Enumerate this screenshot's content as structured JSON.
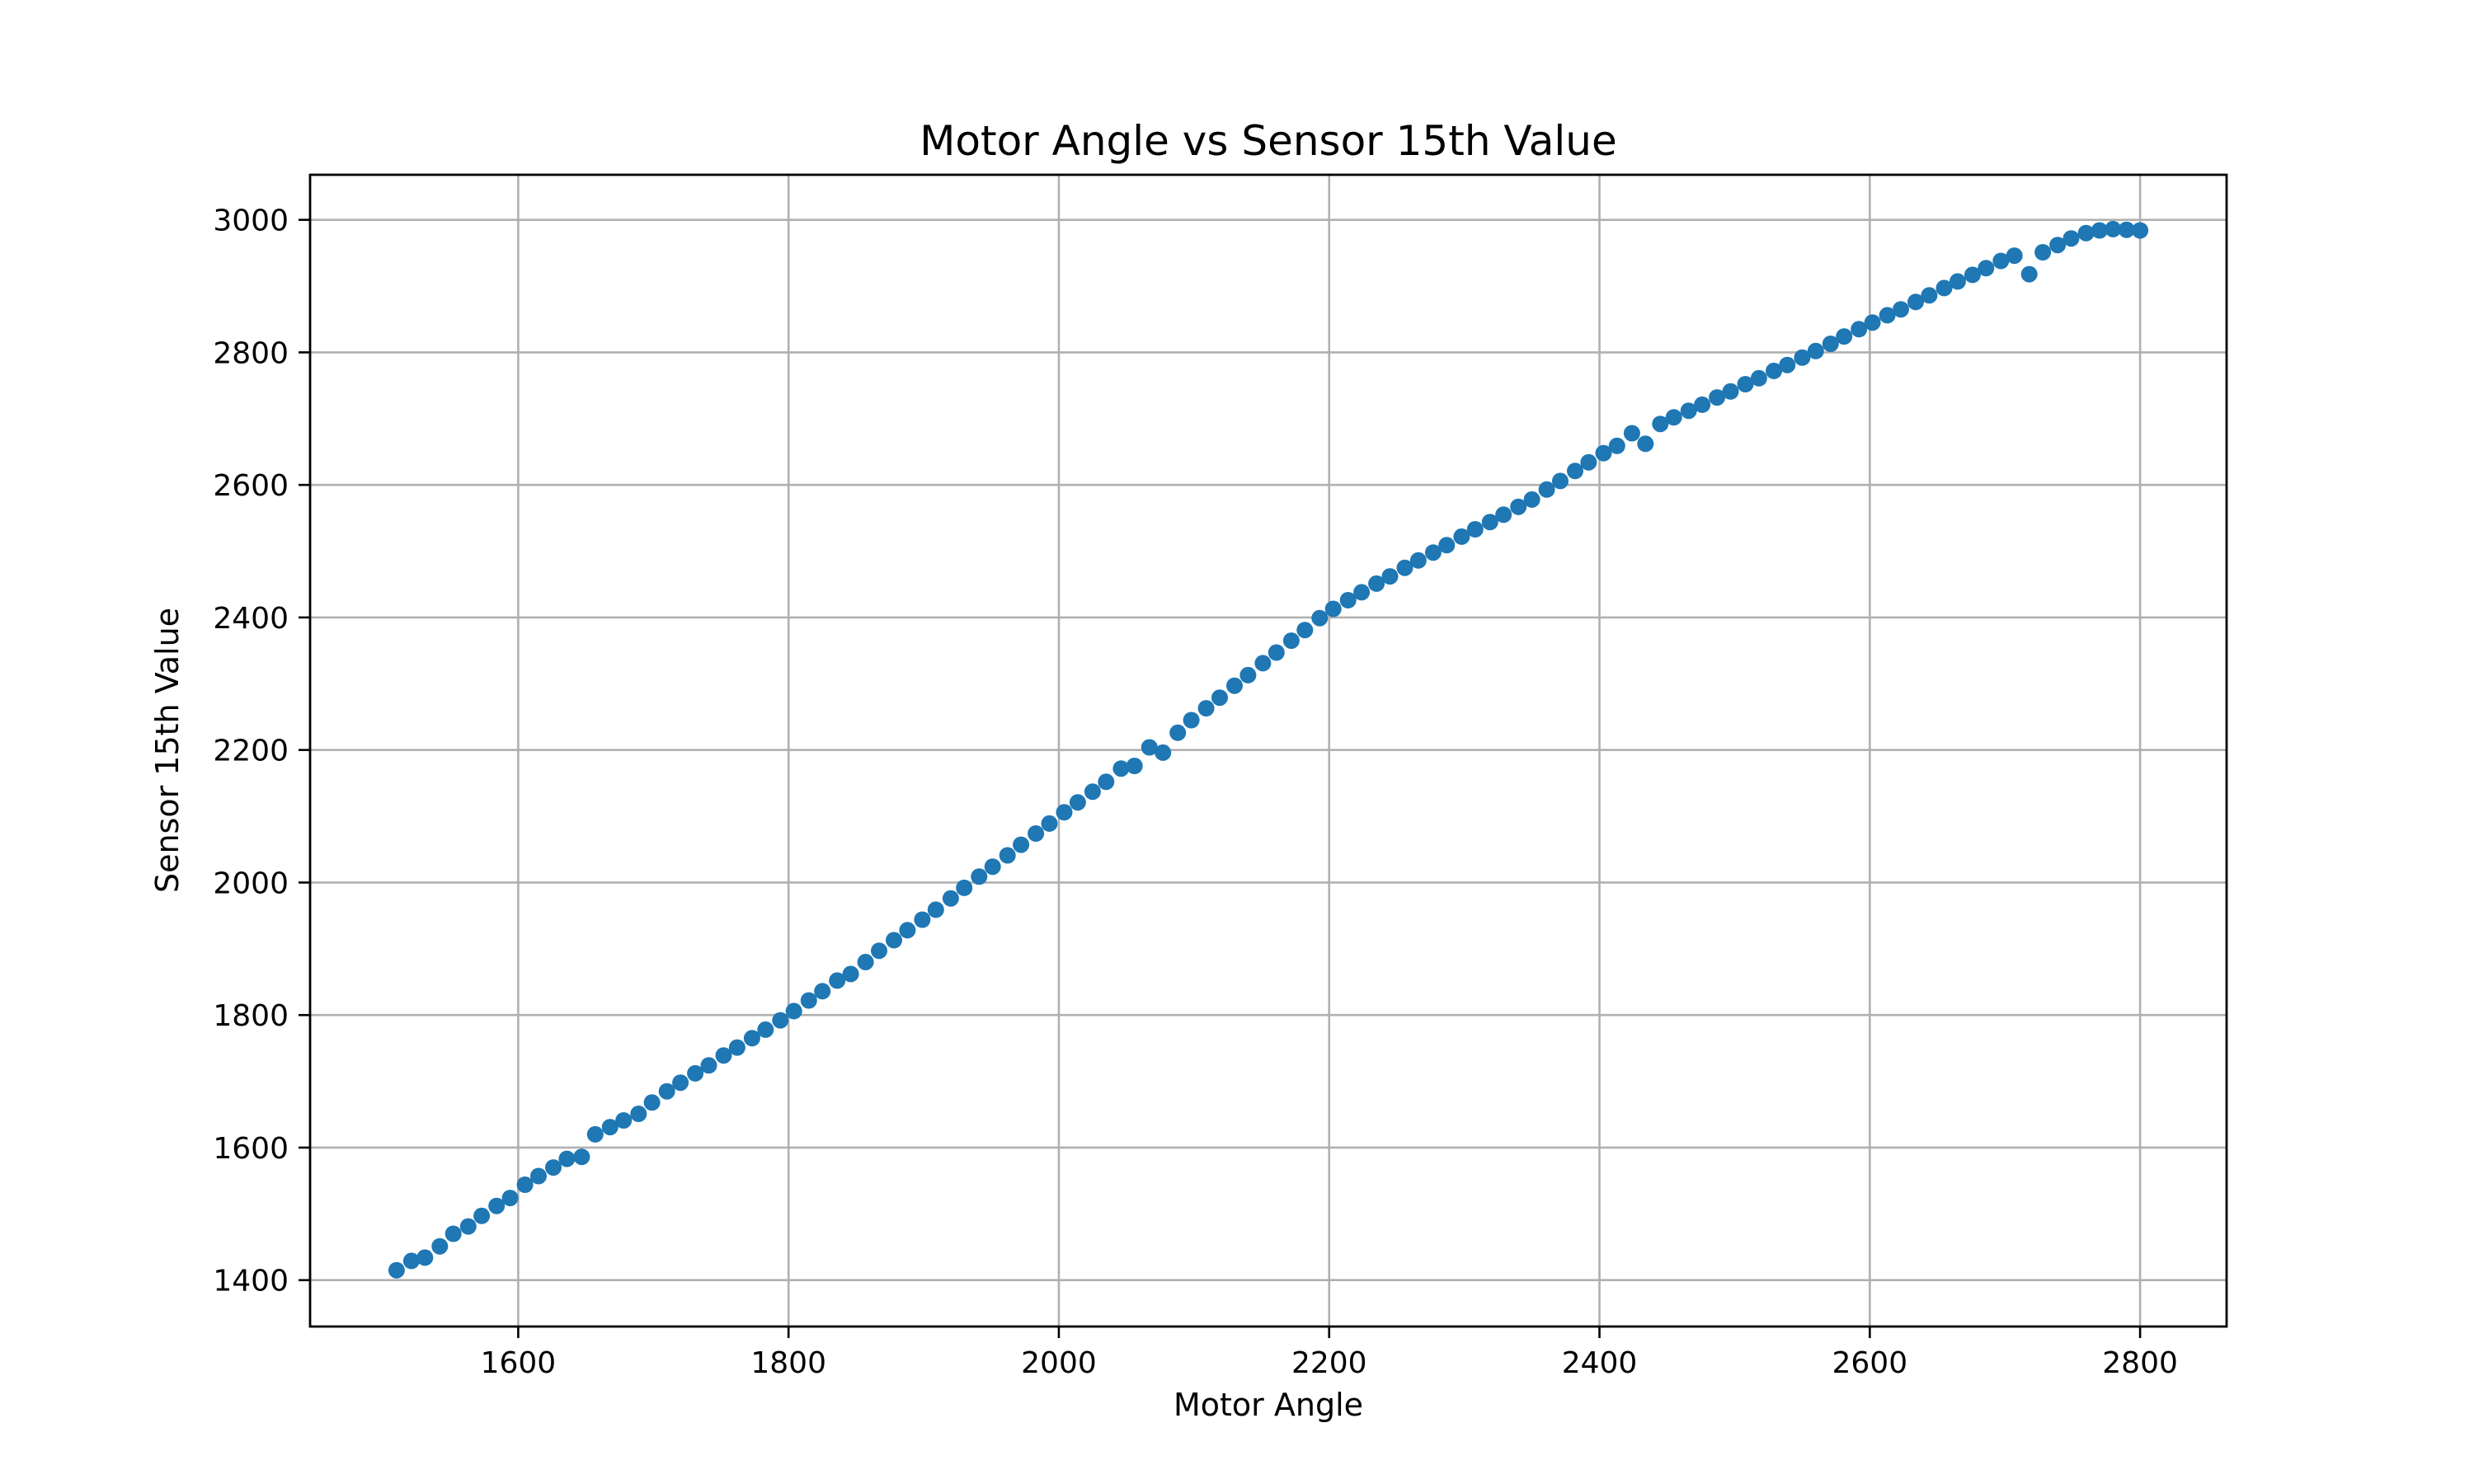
{
  "figure": {
    "background": "#ffffff"
  },
  "chart_data": {
    "type": "scatter",
    "title": "Motor Angle vs Sensor 15th Value",
    "xlabel": "Motor Angle",
    "ylabel": "Sensor 15th Value",
    "xlim": [
      1446,
      2864
    ],
    "ylim": [
      1330,
      3068
    ],
    "x_ticks": [
      1600,
      1800,
      2000,
      2200,
      2400,
      2600,
      2800
    ],
    "y_ticks": [
      1400,
      1600,
      1800,
      2000,
      2200,
      2400,
      2600,
      2800,
      3000
    ],
    "grid": true,
    "legend": false,
    "marker_color": "#1f77b4",
    "grid_color": "#b0b0b0",
    "axis_color": "#000000",
    "marker_radius_px": 10,
    "points": [
      [
        1510,
        1415
      ],
      [
        1521,
        1429
      ],
      [
        1531,
        1434
      ],
      [
        1542,
        1451
      ],
      [
        1552,
        1470
      ],
      [
        1563,
        1481
      ],
      [
        1573,
        1497
      ],
      [
        1584,
        1512
      ],
      [
        1594,
        1524
      ],
      [
        1605,
        1544
      ],
      [
        1615,
        1557
      ],
      [
        1626,
        1570
      ],
      [
        1636,
        1583
      ],
      [
        1647,
        1586
      ],
      [
        1657,
        1620
      ],
      [
        1668,
        1631
      ],
      [
        1678,
        1641
      ],
      [
        1689,
        1651
      ],
      [
        1699,
        1668
      ],
      [
        1710,
        1685
      ],
      [
        1720,
        1698
      ],
      [
        1731,
        1712
      ],
      [
        1741,
        1724
      ],
      [
        1752,
        1739
      ],
      [
        1762,
        1751
      ],
      [
        1773,
        1765
      ],
      [
        1783,
        1778
      ],
      [
        1794,
        1792
      ],
      [
        1804,
        1806
      ],
      [
        1815,
        1822
      ],
      [
        1825,
        1836
      ],
      [
        1836,
        1852
      ],
      [
        1846,
        1862
      ],
      [
        1857,
        1880
      ],
      [
        1867,
        1897
      ],
      [
        1878,
        1913
      ],
      [
        1888,
        1928
      ],
      [
        1899,
        1944
      ],
      [
        1909,
        1959
      ],
      [
        1920,
        1976
      ],
      [
        1930,
        1992
      ],
      [
        1941,
        2009
      ],
      [
        1951,
        2024
      ],
      [
        1962,
        2041
      ],
      [
        1972,
        2057
      ],
      [
        1983,
        2074
      ],
      [
        1993,
        2089
      ],
      [
        2004,
        2106
      ],
      [
        2014,
        2121
      ],
      [
        2025,
        2137
      ],
      [
        2035,
        2152
      ],
      [
        2046,
        2172
      ],
      [
        2056,
        2176
      ],
      [
        2067,
        2204
      ],
      [
        2077,
        2196
      ],
      [
        2088,
        2226
      ],
      [
        2098,
        2245
      ],
      [
        2109,
        2263
      ],
      [
        2119,
        2279
      ],
      [
        2130,
        2297
      ],
      [
        2140,
        2313
      ],
      [
        2151,
        2331
      ],
      [
        2161,
        2347
      ],
      [
        2172,
        2365
      ],
      [
        2182,
        2381
      ],
      [
        2193,
        2399
      ],
      [
        2203,
        2413
      ],
      [
        2214,
        2426
      ],
      [
        2224,
        2438
      ],
      [
        2235,
        2451
      ],
      [
        2245,
        2462
      ],
      [
        2256,
        2475
      ],
      [
        2266,
        2486
      ],
      [
        2277,
        2498
      ],
      [
        2287,
        2509
      ],
      [
        2298,
        2522
      ],
      [
        2308,
        2533
      ],
      [
        2319,
        2544
      ],
      [
        2329,
        2555
      ],
      [
        2340,
        2567
      ],
      [
        2350,
        2578
      ],
      [
        2361,
        2593
      ],
      [
        2371,
        2606
      ],
      [
        2382,
        2621
      ],
      [
        2392,
        2634
      ],
      [
        2403,
        2648
      ],
      [
        2413,
        2659
      ],
      [
        2424,
        2678
      ],
      [
        2434,
        2662
      ],
      [
        2445,
        2692
      ],
      [
        2455,
        2702
      ],
      [
        2466,
        2712
      ],
      [
        2476,
        2721
      ],
      [
        2487,
        2732
      ],
      [
        2497,
        2741
      ],
      [
        2508,
        2752
      ],
      [
        2518,
        2761
      ],
      [
        2529,
        2772
      ],
      [
        2539,
        2781
      ],
      [
        2550,
        2792
      ],
      [
        2560,
        2802
      ],
      [
        2571,
        2813
      ],
      [
        2581,
        2824
      ],
      [
        2592,
        2835
      ],
      [
        2602,
        2845
      ],
      [
        2613,
        2856
      ],
      [
        2623,
        2865
      ],
      [
        2634,
        2876
      ],
      [
        2644,
        2886
      ],
      [
        2655,
        2897
      ],
      [
        2665,
        2907
      ],
      [
        2676,
        2917
      ],
      [
        2686,
        2927
      ],
      [
        2697,
        2938
      ],
      [
        2707,
        2946
      ],
      [
        2718,
        2918
      ],
      [
        2728,
        2951
      ],
      [
        2739,
        2962
      ],
      [
        2749,
        2972
      ],
      [
        2760,
        2980
      ],
      [
        2770,
        2984
      ],
      [
        2780,
        2986
      ],
      [
        2790,
        2985
      ],
      [
        2800,
        2984
      ]
    ]
  }
}
